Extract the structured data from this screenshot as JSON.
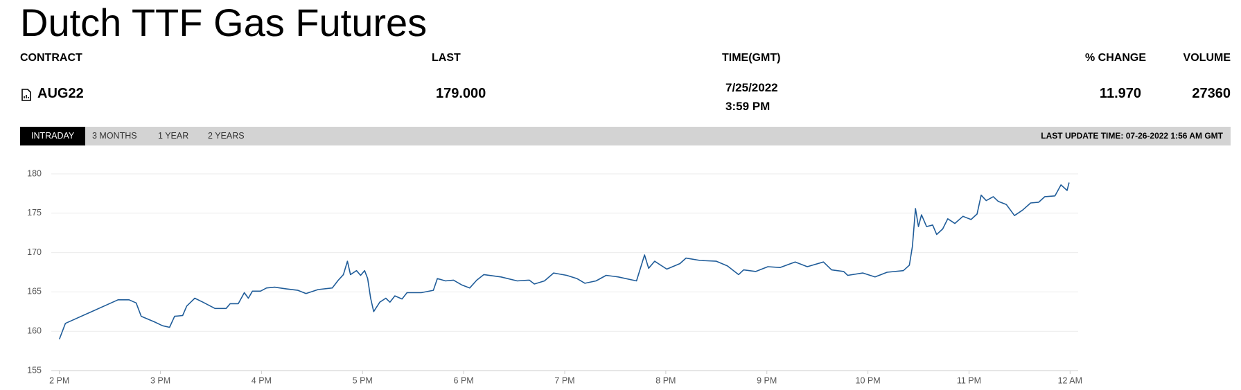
{
  "header": {
    "title": "Dutch TTF Gas Futures"
  },
  "table": {
    "columns": [
      "CONTRACT",
      "LAST",
      "TIME(GMT)",
      "% CHANGE",
      "VOLUME"
    ],
    "row": {
      "contract": "AUG22",
      "last": "179.000",
      "date": "7/25/2022",
      "time": "3:59 PM",
      "change": "11.970",
      "volume": "27360"
    }
  },
  "tabs": {
    "items": [
      "INTRADAY",
      "3 MONTHS",
      "1 YEAR",
      "2 YEARS"
    ],
    "active": 0,
    "last_update": "LAST UPDATE TIME: 07-26-2022 1:56 AM GMT"
  },
  "chart_data": {
    "type": "line",
    "color": "#1f5c99",
    "grid": true,
    "x": [
      14.0,
      14.06,
      14.58,
      14.69,
      14.76,
      14.81,
      14.94,
      15.02,
      15.09,
      15.14,
      15.22,
      15.26,
      15.3,
      15.34,
      15.42,
      15.54,
      15.65,
      15.69,
      15.77,
      15.83,
      15.87,
      15.91,
      15.99,
      16.05,
      16.13,
      16.24,
      16.36,
      16.44,
      16.56,
      16.7,
      16.76,
      16.81,
      16.85,
      16.88,
      16.94,
      16.98,
      17.02,
      17.05,
      17.08,
      17.11,
      17.17,
      17.23,
      17.27,
      17.32,
      17.39,
      17.44,
      17.58,
      17.7,
      17.74,
      17.82,
      17.9,
      17.98,
      18.06,
      18.13,
      18.2,
      18.37,
      18.53,
      18.65,
      18.7,
      18.8,
      18.89,
      19.02,
      19.12,
      19.2,
      19.31,
      19.41,
      19.53,
      19.71,
      19.79,
      19.83,
      19.89,
      20.01,
      20.14,
      20.2,
      20.34,
      20.5,
      20.61,
      20.72,
      20.77,
      20.89,
      21.01,
      21.13,
      21.28,
      21.4,
      21.56,
      21.64,
      21.76,
      21.8,
      21.95,
      22.07,
      22.19,
      22.35,
      22.41,
      22.44,
      22.47,
      22.5,
      22.53,
      22.58,
      22.64,
      22.68,
      22.74,
      22.79,
      22.86,
      22.94,
      23.02,
      23.08,
      23.12,
      23.17,
      23.24,
      23.29,
      23.37,
      23.45,
      23.53,
      23.61,
      23.69,
      23.75,
      23.85,
      23.91,
      23.97,
      23.99
    ],
    "values": [
      159.0,
      161.0,
      164.0,
      164.0,
      163.6,
      161.9,
      161.2,
      160.7,
      160.5,
      161.9,
      162.0,
      163.2,
      163.7,
      164.2,
      163.7,
      162.9,
      162.9,
      163.5,
      163.5,
      164.9,
      164.2,
      165.1,
      165.1,
      165.5,
      165.6,
      165.4,
      165.2,
      164.8,
      165.3,
      165.5,
      166.5,
      167.2,
      168.9,
      167.2,
      167.7,
      167.1,
      167.7,
      166.7,
      164.2,
      162.5,
      163.7,
      164.2,
      163.7,
      164.5,
      164.1,
      164.9,
      164.9,
      165.2,
      166.7,
      166.4,
      166.5,
      165.9,
      165.5,
      166.5,
      167.2,
      166.9,
      166.4,
      166.5,
      166.0,
      166.4,
      167.4,
      167.1,
      166.7,
      166.1,
      166.4,
      167.1,
      166.9,
      166.4,
      169.7,
      168.0,
      168.9,
      167.9,
      168.6,
      169.3,
      169.0,
      168.9,
      168.3,
      167.2,
      167.8,
      167.6,
      168.2,
      168.1,
      168.8,
      168.2,
      168.8,
      167.8,
      167.6,
      167.1,
      167.4,
      166.9,
      167.5,
      167.7,
      168.4,
      170.8,
      175.6,
      173.3,
      174.8,
      173.3,
      173.5,
      172.3,
      173.0,
      174.3,
      173.7,
      174.6,
      174.2,
      174.9,
      177.3,
      176.6,
      177.1,
      176.5,
      176.1,
      174.7,
      175.4,
      176.3,
      176.4,
      177.1,
      177.2,
      178.6,
      177.9,
      178.9
    ],
    "xlim": [
      13.92,
      24.08
    ],
    "xticks": [
      {
        "value": 14,
        "label": "2 PM"
      },
      {
        "value": 15,
        "label": "3 PM"
      },
      {
        "value": 16,
        "label": "4 PM"
      },
      {
        "value": 17,
        "label": "5 PM"
      },
      {
        "value": 18,
        "label": "6 PM"
      },
      {
        "value": 19,
        "label": "7 PM"
      },
      {
        "value": 20,
        "label": "8 PM"
      },
      {
        "value": 21,
        "label": "9 PM"
      },
      {
        "value": 22,
        "label": "10 PM"
      },
      {
        "value": 23,
        "label": "11 PM"
      },
      {
        "value": 24,
        "label": "12 AM"
      }
    ],
    "ylim": [
      155,
      180
    ],
    "yticks": [
      155,
      160,
      165,
      170,
      175,
      180
    ]
  }
}
